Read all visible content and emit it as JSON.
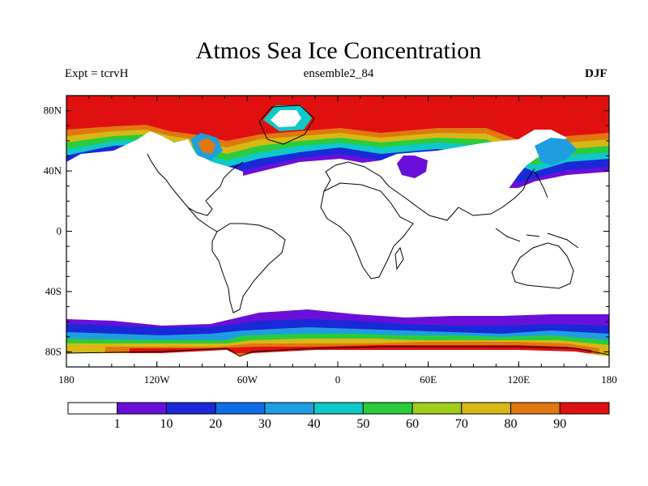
{
  "title": "Atmos Sea Ice Concentration",
  "subtitle_left": "Expt = tcrvH",
  "subtitle_center": "ensemble2_84",
  "subtitle_right": "DJF",
  "lat_ticks": [
    {
      "lat": 80,
      "label": "80N"
    },
    {
      "lat": 40,
      "label": "40N"
    },
    {
      "lat": 0,
      "label": "0"
    },
    {
      "lat": -40,
      "label": "40S"
    },
    {
      "lat": -80,
      "label": "80S"
    }
  ],
  "lon_ticks": [
    {
      "lon": -180,
      "label": "180"
    },
    {
      "lon": -120,
      "label": "120W"
    },
    {
      "lon": -60,
      "label": "60W"
    },
    {
      "lon": 0,
      "label": "0"
    },
    {
      "lon": 60,
      "label": "60E"
    },
    {
      "lon": 120,
      "label": "120E"
    },
    {
      "lon": 180,
      "label": "180"
    }
  ],
  "map_extent": {
    "lon": [
      -180,
      180
    ],
    "lat": [
      -90,
      90
    ]
  },
  "colorbar": {
    "colors": [
      "#ffffff",
      "#6a0fd9",
      "#1a28d8",
      "#0f6ee6",
      "#1e9ee0",
      "#0fc8c8",
      "#2acc3c",
      "#a0cc1a",
      "#d8b814",
      "#e07810",
      "#e01010"
    ],
    "labels": [
      "1",
      "10",
      "20",
      "30",
      "40",
      "50",
      "60",
      "70",
      "80",
      "90"
    ]
  },
  "colors": {
    "ocean_ice_max": "#e01010",
    "coastline": "#000000"
  }
}
